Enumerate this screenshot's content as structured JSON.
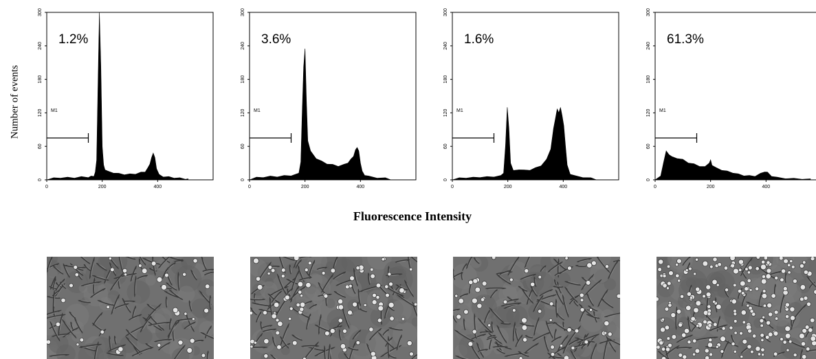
{
  "figure": {
    "ylabel": "Number of events",
    "xlabel": "Fluorescence Intensity"
  },
  "chart_data": [
    {
      "type": "area",
      "panel_index": 1,
      "percent_label": "1.2%",
      "gate_label": "M1",
      "gate_range": [
        0,
        150
      ],
      "gate_y": 75,
      "xlim": [
        0,
        600
      ],
      "ylim": [
        0,
        300
      ],
      "xticks": [
        "0",
        "200",
        "400"
      ],
      "yticks": [
        "0",
        "60",
        "120",
        "180",
        "240",
        "300"
      ],
      "x": [
        0,
        25,
        50,
        75,
        100,
        125,
        150,
        160,
        170,
        175,
        180,
        185,
        190,
        195,
        200,
        205,
        210,
        220,
        240,
        260,
        280,
        300,
        320,
        340,
        355,
        365,
        372,
        378,
        384,
        390,
        396,
        405,
        420,
        440,
        460,
        480,
        500,
        510
      ],
      "y": [
        0,
        2,
        3,
        3,
        3,
        4,
        4,
        5,
        6,
        12,
        35,
        170,
        300,
        200,
        60,
        25,
        18,
        14,
        12,
        10,
        9,
        9,
        10,
        12,
        14,
        20,
        28,
        38,
        48,
        38,
        20,
        8,
        5,
        4,
        3,
        2,
        1,
        0
      ]
    },
    {
      "type": "area",
      "panel_index": 2,
      "percent_label": "3.6%",
      "gate_label": "M1",
      "gate_range": [
        0,
        150
      ],
      "gate_y": 75,
      "xlim": [
        0,
        600
      ],
      "ylim": [
        0,
        300
      ],
      "xticks": [
        "0",
        "200",
        "400"
      ],
      "yticks": [
        "0",
        "60",
        "120",
        "180",
        "240",
        "300"
      ],
      "x": [
        0,
        25,
        50,
        75,
        100,
        125,
        150,
        165,
        178,
        185,
        190,
        195,
        200,
        205,
        210,
        220,
        240,
        260,
        280,
        300,
        320,
        340,
        355,
        365,
        375,
        382,
        388,
        394,
        400,
        406,
        415,
        430,
        460,
        490,
        510
      ],
      "y": [
        0,
        3,
        4,
        5,
        5,
        6,
        7,
        8,
        12,
        30,
        120,
        200,
        235,
        140,
        70,
        50,
        38,
        32,
        28,
        26,
        24,
        26,
        30,
        35,
        42,
        52,
        58,
        50,
        30,
        14,
        8,
        5,
        3,
        2,
        0
      ]
    },
    {
      "type": "area",
      "panel_index": 3,
      "percent_label": "1.6%",
      "gate_label": "M1",
      "gate_range": [
        0,
        150
      ],
      "gate_y": 75,
      "xlim": [
        0,
        600
      ],
      "ylim": [
        0,
        300
      ],
      "xticks": [
        "0",
        "200",
        "400"
      ],
      "yticks": [
        "0",
        "60",
        "120",
        "180",
        "240",
        "300"
      ],
      "x": [
        0,
        25,
        50,
        75,
        100,
        125,
        150,
        175,
        185,
        192,
        198,
        204,
        210,
        220,
        240,
        260,
        280,
        300,
        320,
        340,
        355,
        365,
        372,
        378,
        384,
        390,
        396,
        402,
        408,
        414,
        425,
        440,
        470,
        500,
        520
      ],
      "y": [
        0,
        2,
        3,
        3,
        4,
        4,
        5,
        6,
        12,
        60,
        130,
        90,
        30,
        15,
        18,
        16,
        17,
        20,
        25,
        35,
        55,
        90,
        110,
        125,
        120,
        128,
        115,
        95,
        60,
        25,
        10,
        6,
        4,
        2,
        0
      ]
    },
    {
      "type": "area",
      "panel_index": 4,
      "percent_label": "61.3%",
      "gate_label": "M1",
      "gate_range": [
        0,
        150
      ],
      "gate_y": 75,
      "xlim": [
        0,
        600
      ],
      "ylim": [
        0,
        300
      ],
      "xticks": [
        "0",
        "200",
        "400"
      ],
      "yticks": [
        "0",
        "60",
        "120",
        "180",
        "240",
        "300"
      ],
      "x": [
        0,
        20,
        30,
        40,
        50,
        60,
        80,
        100,
        120,
        140,
        160,
        180,
        195,
        200,
        205,
        220,
        240,
        260,
        280,
        300,
        320,
        340,
        360,
        380,
        395,
        405,
        420,
        440,
        470,
        500,
        530,
        560
      ],
      "y": [
        0,
        5,
        30,
        50,
        45,
        40,
        38,
        35,
        30,
        27,
        24,
        22,
        30,
        34,
        26,
        20,
        17,
        14,
        12,
        9,
        7,
        6,
        6,
        10,
        14,
        12,
        6,
        3,
        2,
        1,
        1,
        0
      ]
    }
  ]
}
